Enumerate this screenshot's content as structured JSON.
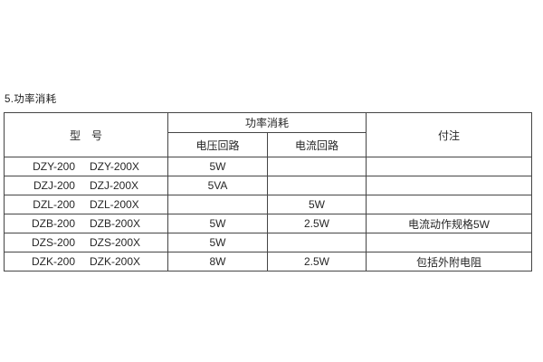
{
  "page": {
    "background": "#ffffff",
    "section_title": "5.功率消耗"
  },
  "table": {
    "border_color": "#454545",
    "text_color": "#262626",
    "headers": {
      "model": "型　号",
      "power_group": "功率消耗",
      "voltage_circuit": "电压回路",
      "current_circuit": "电流回路",
      "notes": "付注"
    },
    "rows": [
      {
        "model_a": "DZY-200",
        "model_b": "DZY-200X",
        "voltage": "5W",
        "current": "",
        "note": ""
      },
      {
        "model_a": "DZJ-200",
        "model_b": "DZJ-200X",
        "voltage": "5VA",
        "current": "",
        "note": ""
      },
      {
        "model_a": "DZL-200",
        "model_b": "DZL-200X",
        "voltage": "",
        "current": "5W",
        "note": ""
      },
      {
        "model_a": "DZB-200",
        "model_b": "DZB-200X",
        "voltage": "5W",
        "current": "2.5W",
        "note": "电流动作规格5W"
      },
      {
        "model_a": "DZS-200",
        "model_b": "DZS-200X",
        "voltage": "5W",
        "current": "",
        "note": ""
      },
      {
        "model_a": "DZK-200",
        "model_b": "DZK-200X",
        "voltage": "8W",
        "current": "2.5W",
        "note": "包括外附电阻"
      }
    ]
  }
}
